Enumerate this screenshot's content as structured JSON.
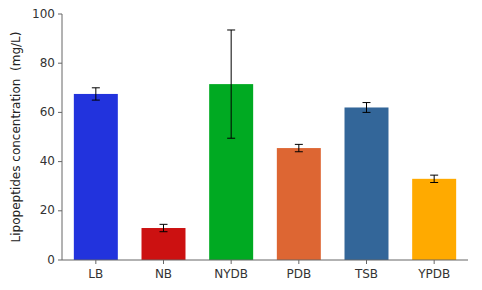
{
  "chart_data": {
    "type": "bar",
    "categories": [
      "LB",
      "NB",
      "NYDB",
      "PDB",
      "TSB",
      "YPDB"
    ],
    "values": [
      67.5,
      13.0,
      71.5,
      45.5,
      62.0,
      33.0
    ],
    "errors": [
      2.5,
      1.5,
      22.0,
      1.5,
      2.0,
      1.5
    ],
    "colors": [
      "#2233DD",
      "#CC1111",
      "#00AA22",
      "#DD6633",
      "#336699",
      "#FFAA00"
    ],
    "ylabel": "Lipopeptides concentration  (mg/L)",
    "ylim": [
      0,
      100
    ],
    "yticks": [
      0,
      20,
      40,
      60,
      80,
      100
    ],
    "grid": false
  }
}
